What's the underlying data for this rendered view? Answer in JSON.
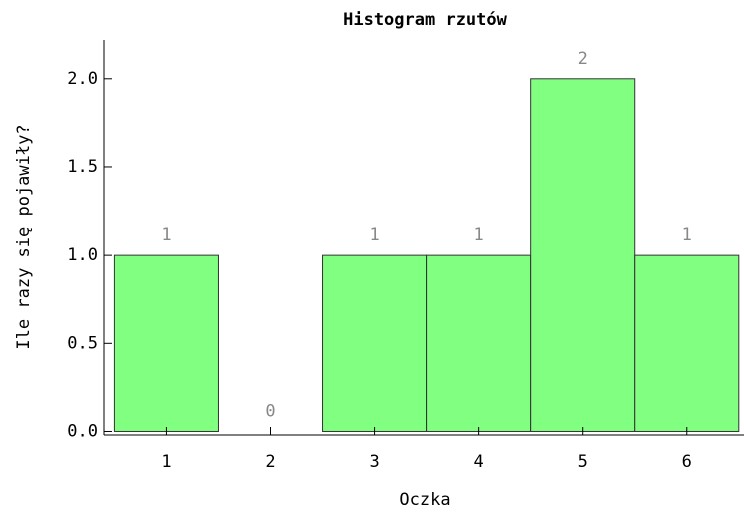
{
  "chart_data": {
    "type": "histogram",
    "title": "Histogram rzutów",
    "xlabel": "Oczka",
    "ylabel": "Ile razy się pojawiły?",
    "bins": [
      0.5,
      1.5,
      2.5,
      3.5,
      4.5,
      5.5,
      6.5
    ],
    "values": [
      1,
      0,
      1,
      1,
      2,
      1
    ],
    "color": "#80ff80",
    "xlim": [
      0.4,
      6.55
    ],
    "xticks": [
      1,
      2,
      3,
      4,
      5,
      6
    ],
    "ylim": [
      -0.02,
      2.22
    ],
    "yticks": [
      {
        "value": 0,
        "label": "0.0"
      },
      0.5,
      {
        "value": 1,
        "label": "1.0"
      },
      1.5,
      {
        "value": 2,
        "label": "2.0"
      }
    ]
  }
}
